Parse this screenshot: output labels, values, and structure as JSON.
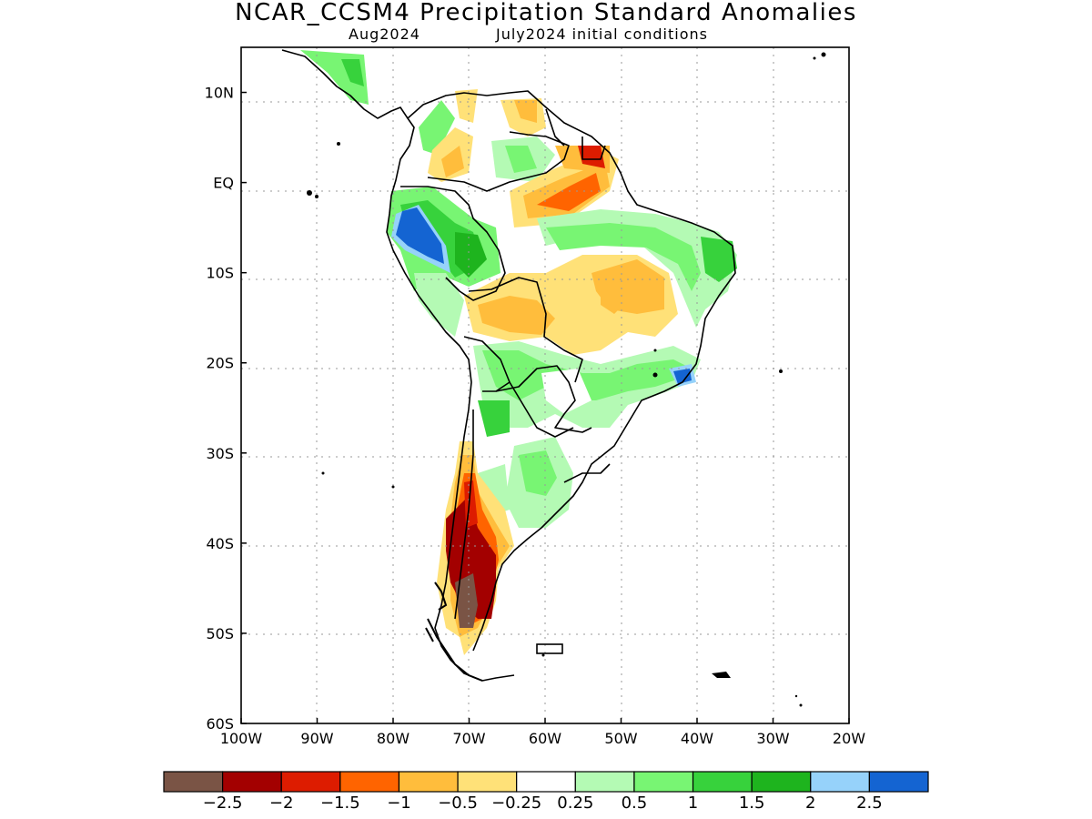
{
  "map": {
    "title": "NCAR_CCSM4 Precipitation Standard Anomalies",
    "subtitle_left": "Aug2024",
    "subtitle_right": "July2024 initial conditions",
    "lon_ticks": [
      "100W",
      "90W",
      "80W",
      "70W",
      "60W",
      "50W",
      "40W",
      "30W",
      "20W"
    ],
    "lat_ticks": [
      "10N",
      "EQ",
      "10S",
      "20S",
      "30S",
      "40S",
      "50S",
      "60S"
    ],
    "lon_range": [
      -100,
      -20
    ],
    "lat_range": [
      -60,
      15
    ]
  },
  "colorbar": {
    "colors": [
      "#7a5445",
      "#a30000",
      "#dd1c00",
      "#ff6400",
      "#ffbd3c",
      "#ffe178",
      "#ffffff",
      "#b4fab4",
      "#78f573",
      "#37d23c",
      "#1eb41e",
      "#96d2fa",
      "#1464d2"
    ],
    "labels": [
      "−2.5",
      "−2",
      "−1.5",
      "−1",
      "−0.5",
      "−0.25",
      "0.25",
      "0.5",
      "1",
      "1.5",
      "2",
      "2.5"
    ]
  }
}
